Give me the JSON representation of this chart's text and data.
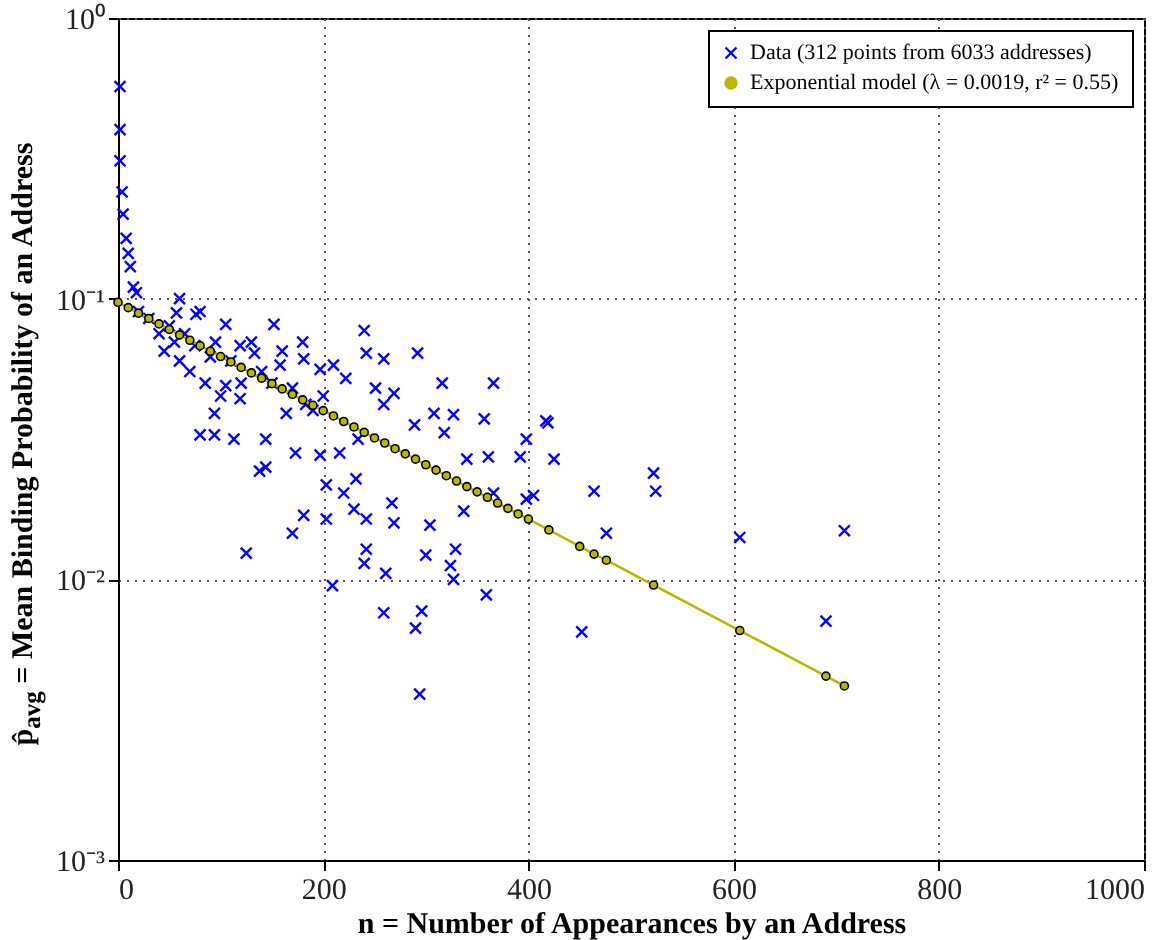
{
  "chart_data": {
    "type": "scatter",
    "xlabel": "n = Number of Appearances by an Address",
    "ylabel": "p̂$_{avg}$ = Mean Binding Probability of an Address",
    "xlim": [
      0,
      1000
    ],
    "xticks": [
      0,
      200,
      400,
      600,
      800,
      1000
    ],
    "ylim": [
      0.001,
      1
    ],
    "yticks": [
      {
        "value": 0.001,
        "label": "10⁻³"
      },
      {
        "value": 0.01,
        "label": "10⁻²"
      },
      {
        "value": 0.1,
        "label": "10⁻¹"
      },
      {
        "value": 1,
        "label": "10⁰"
      }
    ],
    "log": "y",
    "grid": true,
    "legend": "top right",
    "series": [
      {
        "name": "Data (312 points from 6033 addresses)",
        "type": "scatter",
        "marker": "cross",
        "color": "#0000ff",
        "x": [
          2,
          2,
          2,
          4,
          5,
          8,
          10,
          12,
          15,
          18,
          20,
          30,
          40,
          45,
          50,
          55,
          57,
          60,
          60,
          65,
          70,
          75,
          76,
          80,
          80,
          85,
          90,
          94,
          94,
          95,
          100,
          105,
          105,
          110,
          113,
          119,
          119,
          120,
          125,
          130,
          133,
          138,
          140,
          144,
          144,
          150,
          152,
          158,
          160,
          164,
          170,
          170,
          173,
          180,
          181,
          181,
          183,
          190,
          197,
          197,
          200,
          203,
          203,
          209,
          210,
          216,
          220,
          222,
          230,
          232,
          234,
          240,
          240,
          242,
          242,
          242,
          251,
          259,
          259,
          259,
          261,
          267,
          269,
          269,
          289,
          290,
          292,
          294,
          296,
          300,
          304,
          308,
          316,
          318,
          324,
          327,
          327,
          329,
          337,
          340,
          357,
          359,
          361,
          366,
          366,
          392,
          398,
          398,
          405,
          417,
          419,
          425,
          452,
          464,
          476,
          522,
          524,
          606,
          690,
          708
        ],
        "values": [
          0.57,
          0.4,
          0.31,
          0.24,
          0.2,
          0.164,
          0.145,
          0.13,
          0.11,
          0.105,
          0.09,
          0.085,
          0.075,
          0.065,
          0.08,
          0.07,
          0.089,
          0.06,
          0.1,
          0.075,
          0.055,
          0.068,
          0.088,
          0.09,
          0.0327,
          0.05,
          0.062,
          0.039,
          0.0327,
          0.07,
          0.045,
          0.081,
          0.049,
          0.06,
          0.0316,
          0.068,
          0.044,
          0.05,
          0.0124,
          0.07,
          0.064,
          0.0243,
          0.055,
          0.0251,
          0.0316,
          0.05,
          0.081,
          0.058,
          0.065,
          0.039,
          0.048,
          0.0146,
          0.0282,
          0.07,
          0.061,
          0.0169,
          0.042,
          0.04,
          0.056,
          0.0277,
          0.045,
          0.0217,
          0.0164,
          0.0095,
          0.058,
          0.0282,
          0.0203,
          0.052,
          0.0178,
          0.0228,
          0.0316,
          0.077,
          0.0114,
          0.064,
          0.0164,
          0.0128,
          0.048,
          0.061,
          0.042,
          0.0076,
          0.0105,
          0.0187,
          0.046,
          0.0159,
          0.0355,
          0.0067,
          0.064,
          0.0039,
          0.0077,
          0.0122,
          0.0156,
          0.039,
          0.05,
          0.0333,
          0.0112,
          0.0386,
          0.01,
          0.0128,
          0.0175,
          0.0268,
          0.0373,
          0.0088,
          0.0273,
          0.05,
          0.0203,
          0.0273,
          0.0316,
          0.0193,
          0.0199,
          0.0367,
          0.0361,
          0.0268,
          0.0065,
          0.0206,
          0.0146,
          0.0239,
          0.0206,
          0.0141,
          0.0071,
          0.0149
        ]
      },
      {
        "name": "Exponential model (λ = 0.0019, r² = 0.55)",
        "type": "line",
        "marker": "circle",
        "color": "#b8b800",
        "x": [
          0,
          10,
          20,
          30,
          40,
          50,
          60,
          70,
          80,
          90,
          100,
          110,
          120,
          130,
          140,
          150,
          160,
          170,
          180,
          190,
          200,
          210,
          220,
          230,
          240,
          250,
          260,
          270,
          280,
          290,
          300,
          310,
          320,
          330,
          340,
          350,
          360,
          370,
          380,
          390,
          400,
          420,
          450,
          464,
          476,
          522,
          606,
          690,
          708
        ],
        "values": [
          0.0971,
          0.0929,
          0.0888,
          0.085,
          0.0813,
          0.0777,
          0.0743,
          0.0711,
          0.068,
          0.065,
          0.0622,
          0.0595,
          0.0569,
          0.0544,
          0.0521,
          0.0498,
          0.0477,
          0.0456,
          0.0436,
          0.0417,
          0.0399,
          0.0382,
          0.0365,
          0.0349,
          0.0334,
          0.0319,
          0.0306,
          0.0292,
          0.028,
          0.0268,
          0.0256,
          0.0245,
          0.0234,
          0.0224,
          0.0214,
          0.0205,
          0.0196,
          0.0187,
          0.0179,
          0.0171,
          0.0164,
          0.015,
          0.0131,
          0.0123,
          0.0117,
          0.00954,
          0.00657,
          0.00452,
          0.00417
        ]
      }
    ]
  }
}
